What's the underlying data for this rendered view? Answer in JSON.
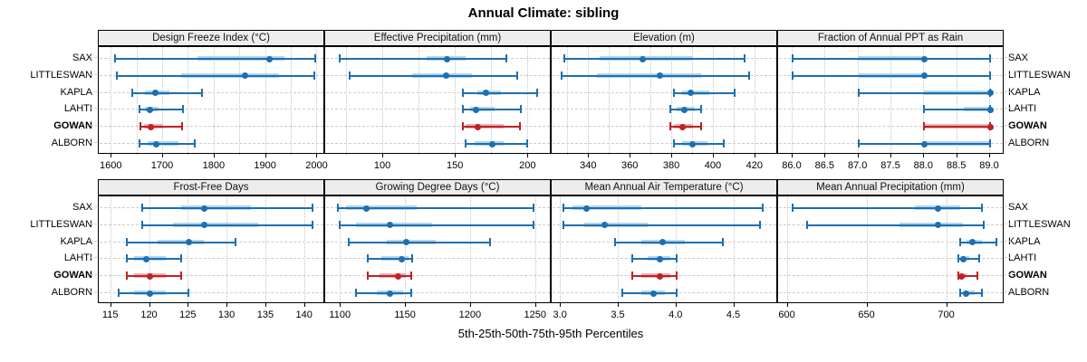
{
  "title": "Annual Climate: sibling",
  "footer": "5th-25th-50th-75th-95th Percentiles",
  "sites": [
    "SAX",
    "LITTLESWAN",
    "KAPLA",
    "LAHTI",
    "GOWAN",
    "ALBORN"
  ],
  "highlight_site": "GOWAN",
  "colors": {
    "series_dark": "#1c6fb0",
    "series_light": "#b5d5ec",
    "highlight_dark": "#c02026",
    "highlight_light": "#e9b2b5",
    "panel_header_bg": "#ededed",
    "panel_border": "#000000",
    "grid": "#c9c9c9"
  },
  "chart_data": {
    "type": "quantile-dotplot-trellis",
    "quantiles": [
      5,
      25,
      50,
      75,
      95
    ],
    "legend_note": "dot = 50th percentile, light band = 25th-75th, thin line with caps = 5th-95th",
    "rows": [
      "SAX",
      "LITTLESWAN",
      "KAPLA",
      "LAHTI",
      "GOWAN",
      "ALBORN"
    ],
    "panels": [
      {
        "title": "Design Freeze Index (°C)",
        "range": [
          1575,
          2015
        ],
        "grid": [
          1600,
          1650,
          1700,
          1750,
          1800,
          1850,
          1900,
          1950,
          2000
        ],
        "tick_values": [
          1600,
          1700,
          1800,
          1900,
          2000
        ],
        "tick_labels": [
          "1600",
          "1700",
          "1800",
          "1900",
          "2000"
        ],
        "series": {
          "SAX": [
            1607,
            1767,
            1906,
            1935,
            1995
          ],
          "LITTLESWAN": [
            1610,
            1735,
            1860,
            1925,
            1993
          ],
          "KAPLA": [
            1640,
            1664,
            1685,
            1712,
            1775
          ],
          "LAHTI": [
            1655,
            1664,
            1674,
            1692,
            1738
          ],
          "GOWAN": [
            1656,
            1663,
            1676,
            1700,
            1737
          ],
          "ALBORN": [
            1655,
            1670,
            1686,
            1730,
            1762
          ]
        }
      },
      {
        "title": "Effective Precipitation (mm)",
        "range": [
          60,
          216
        ],
        "grid": [
          75,
          100,
          125,
          150,
          175,
          200
        ],
        "tick_values": [
          100,
          150,
          200
        ],
        "tick_labels": [
          "100",
          "150",
          "200"
        ],
        "series": {
          "SAX": [
            70,
            130,
            144,
            157,
            185
          ],
          "LITTLESWAN": [
            77,
            120,
            143,
            161,
            192
          ],
          "KAPLA": [
            155,
            165,
            171,
            181,
            206
          ],
          "LAHTI": [
            155,
            160,
            164,
            177,
            195
          ],
          "GOWAN": [
            155,
            157,
            165,
            183,
            194
          ],
          "ALBORN": [
            157,
            163,
            175,
            183,
            199
          ]
        }
      },
      {
        "title": "Elevation (m)",
        "range": [
          322,
          431
        ],
        "grid": [
          330,
          340,
          350,
          360,
          370,
          380,
          390,
          400,
          410,
          420
        ],
        "tick_values": [
          340,
          360,
          380,
          400,
          420
        ],
        "tick_labels": [
          "340",
          "360",
          "380",
          "400",
          "420"
        ],
        "series": {
          "SAX": [
            328,
            345,
            366,
            390,
            415
          ],
          "LITTLESWAN": [
            327,
            344,
            374,
            394,
            417
          ],
          "KAPLA": [
            381,
            385,
            389,
            398,
            410
          ],
          "LAHTI": [
            379,
            382,
            386,
            391,
            394
          ],
          "GOWAN": [
            379,
            381,
            385,
            390,
            394
          ],
          "ALBORN": [
            381,
            385,
            390,
            397,
            405
          ]
        }
      },
      {
        "title": "Fraction of Annual PPT as Rain",
        "range": [
          85.78,
          89.22
        ],
        "grid": [
          86.0,
          86.5,
          87.0,
          87.5,
          88.0,
          88.5,
          89.0
        ],
        "tick_values": [
          86.0,
          86.5,
          87.0,
          87.5,
          88.0,
          88.5,
          89.0
        ],
        "tick_labels": [
          "86.0",
          "86.5",
          "87.0",
          "87.5",
          "88.0",
          "88.5",
          "89.0"
        ],
        "series": {
          "SAX": [
            86.0,
            87.0,
            88.0,
            88.0,
            89.0
          ],
          "LITTLESWAN": [
            86.0,
            87.0,
            88.0,
            88.0,
            89.0
          ],
          "KAPLA": [
            87.0,
            88.0,
            89.0,
            89.0,
            89.0
          ],
          "LAHTI": [
            88.0,
            88.6,
            89.0,
            89.0,
            89.0
          ],
          "GOWAN": [
            88.0,
            88.0,
            89.0,
            89.0,
            89.0
          ],
          "ALBORN": [
            87.0,
            88.0,
            88.0,
            89.0,
            89.0
          ]
        }
      },
      {
        "title": "Frost-Free Days",
        "range": [
          113.4,
          142.6
        ],
        "grid": [
          115,
          120,
          125,
          130,
          135,
          140
        ],
        "tick_values": [
          115,
          120,
          125,
          130,
          135,
          140
        ],
        "tick_labels": [
          "115",
          "120",
          "125",
          "130",
          "135",
          "140"
        ],
        "series": {
          "SAX": [
            119,
            124,
            127,
            133,
            141
          ],
          "LITTLESWAN": [
            119,
            123,
            127,
            134,
            141
          ],
          "KAPLA": [
            117,
            121,
            125,
            127,
            131
          ],
          "LAHTI": [
            117,
            118,
            119.5,
            122,
            124
          ],
          "GOWAN": [
            117,
            118,
            120,
            122,
            124
          ],
          "ALBORN": [
            116,
            118,
            120,
            122,
            125
          ]
        }
      },
      {
        "title": "Growing Degree Days (°C)",
        "range": [
          1088,
          1262
        ],
        "grid": [
          1100,
          1150,
          1200,
          1250
        ],
        "tick_values": [
          1100,
          1150,
          1200,
          1250
        ],
        "tick_labels": [
          "1100",
          "1150",
          "1200",
          "1250"
        ],
        "series": {
          "SAX": [
            1098,
            1104,
            1120,
            1158,
            1248
          ],
          "LITTLESWAN": [
            1099,
            1112,
            1138,
            1170,
            1248
          ],
          "KAPLA": [
            1106,
            1135,
            1150,
            1173,
            1215
          ],
          "LAHTI": [
            1121,
            1131,
            1147,
            1152,
            1155
          ],
          "GOWAN": [
            1121,
            1130,
            1144,
            1150,
            1154
          ],
          "ALBORN": [
            1112,
            1128,
            1138,
            1148,
            1154
          ]
        }
      },
      {
        "title": "Mean Annual Air Temperature (°C)",
        "range": [
          2.92,
          4.88
        ],
        "grid": [
          3.0,
          3.5,
          4.0,
          4.5
        ],
        "tick_values": [
          3.0,
          3.5,
          4.0,
          4.5
        ],
        "tick_labels": [
          "3.0",
          "3.5",
          "4.0",
          "4.5"
        ],
        "series": {
          "SAX": [
            3.02,
            3.1,
            3.22,
            3.7,
            4.75
          ],
          "LITTLESWAN": [
            3.02,
            3.2,
            3.38,
            3.75,
            4.72
          ],
          "KAPLA": [
            3.47,
            3.7,
            3.88,
            4.07,
            4.4
          ],
          "LAHTI": [
            3.62,
            3.75,
            3.86,
            3.95,
            4.0
          ],
          "GOWAN": [
            3.62,
            3.7,
            3.86,
            3.95,
            4.0
          ],
          "ALBORN": [
            3.53,
            3.7,
            3.8,
            3.9,
            4.0
          ]
        }
      },
      {
        "title": "Mean Annual Precipitation (mm)",
        "range": [
          594,
          736
        ],
        "grid": [
          600,
          650,
          700
        ],
        "tick_values": [
          600,
          650,
          700
        ],
        "tick_labels": [
          "600",
          "650",
          "700"
        ],
        "series": {
          "SAX": [
            603,
            680,
            694,
            708,
            722
          ],
          "LITTLESWAN": [
            612,
            670,
            694,
            710,
            723
          ],
          "KAPLA": [
            708,
            712,
            716,
            722,
            731
          ],
          "LAHTI": [
            707,
            708,
            710,
            714,
            720
          ],
          "GOWAN": [
            707,
            708,
            709,
            712,
            719
          ],
          "ALBORN": [
            708,
            710,
            712,
            717,
            722
          ]
        }
      }
    ]
  }
}
